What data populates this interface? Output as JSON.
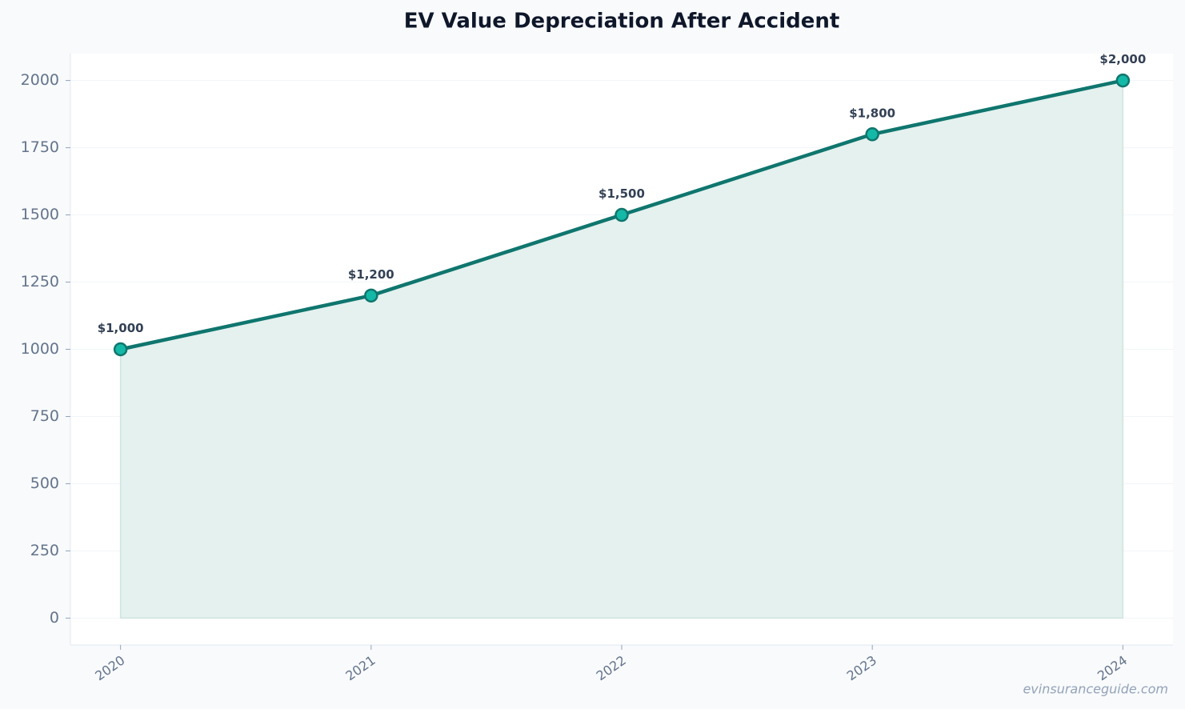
{
  "chart_data": {
    "type": "line",
    "title": "EV Value Depreciation After Accident",
    "x": [
      2020,
      2021,
      2022,
      2023,
      2024
    ],
    "values": [
      1000,
      1200,
      1500,
      1800,
      2000
    ],
    "value_labels": [
      "$1,000",
      "$1,200",
      "$1,500",
      "$1,800",
      "$2,000"
    ],
    "color": "#0f766e",
    "marker_color": "#14b8a6",
    "fill_color": "#e4f1ee",
    "xlim": [
      2019.8,
      2024.2
    ],
    "xticks": [
      2020,
      2021,
      2022,
      2023,
      2024
    ],
    "ylim": [
      -100,
      2100
    ],
    "yticks": [
      0,
      250,
      500,
      750,
      1000,
      1250,
      1500,
      1750,
      2000
    ],
    "grid": true,
    "filled": true,
    "watermark": "evinsuranceguide.com"
  }
}
